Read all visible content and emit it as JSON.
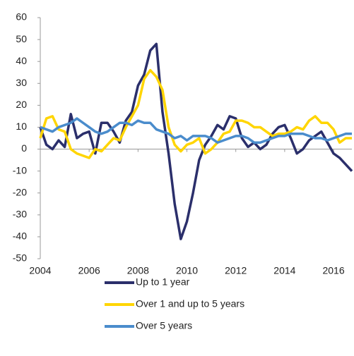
{
  "chart_data": {
    "type": "line",
    "x": [
      2004,
      2004.25,
      2004.5,
      2004.75,
      2005,
      2005.25,
      2005.5,
      2005.75,
      2006,
      2006.25,
      2006.5,
      2006.75,
      2007,
      2007.25,
      2007.5,
      2007.75,
      2008,
      2008.25,
      2008.5,
      2008.75,
      2009,
      2009.25,
      2009.5,
      2009.75,
      2010,
      2010.25,
      2010.5,
      2010.75,
      2011,
      2011.25,
      2011.5,
      2011.75,
      2012,
      2012.25,
      2012.5,
      2012.75,
      2013,
      2013.25,
      2013.5,
      2013.75,
      2014,
      2014.25,
      2014.5,
      2014.75,
      2015,
      2015.25,
      2015.5,
      2015.75,
      2016,
      2016.25,
      2016.5,
      2016.75
    ],
    "series": [
      {
        "name": "Up to 1 year",
        "color": "#2b2f6b",
        "values": [
          10,
          2,
          0,
          4,
          1,
          16,
          5,
          7,
          8,
          -2,
          12,
          12,
          8,
          3,
          13,
          17,
          29,
          34,
          45,
          48,
          17,
          -2,
          -25,
          -41,
          -33,
          -20,
          -5,
          2,
          6,
          11,
          9,
          15,
          14,
          5,
          1,
          3,
          0,
          2,
          7,
          10,
          11,
          5,
          -2,
          0,
          4,
          6,
          8,
          3,
          -2,
          -4,
          -7,
          -10
        ]
      },
      {
        "name": "Over 1 and up to 5 years",
        "color": "#ffd500",
        "values": [
          5,
          14,
          15,
          9,
          8,
          0,
          -2,
          -3,
          -4,
          0,
          -1,
          2,
          5,
          4,
          10,
          15,
          20,
          32,
          36,
          33,
          27,
          10,
          2,
          -1,
          2,
          3,
          5,
          -2,
          0,
          3,
          7,
          8,
          13,
          13,
          12,
          10,
          10,
          8,
          6,
          7,
          7,
          8,
          10,
          9,
          13,
          15,
          12,
          12,
          9,
          3,
          5,
          5
        ]
      },
      {
        "name": "Over 5 years",
        "color": "#4a8ccc",
        "values": [
          10,
          9,
          8,
          10,
          11,
          12,
          14,
          12,
          10,
          8,
          7,
          8,
          10,
          12,
          12,
          11,
          13,
          12,
          12,
          9,
          8,
          7,
          5,
          6,
          4,
          6,
          6,
          6,
          5,
          3,
          4,
          5,
          6,
          6,
          5,
          3,
          3,
          4,
          5,
          6,
          6,
          7,
          7,
          7,
          6,
          5,
          5,
          4,
          5,
          6,
          7,
          7
        ]
      }
    ],
    "xlim": [
      2004,
      2016.75
    ],
    "xticks": [
      2004,
      2006,
      2008,
      2010,
      2012,
      2014,
      2016
    ],
    "ylim": [
      -50,
      60
    ],
    "yticks": [
      -50,
      -40,
      -30,
      -20,
      -10,
      0,
      10,
      20,
      30,
      40,
      50,
      60
    ],
    "grid": false,
    "legend": "bottom"
  }
}
